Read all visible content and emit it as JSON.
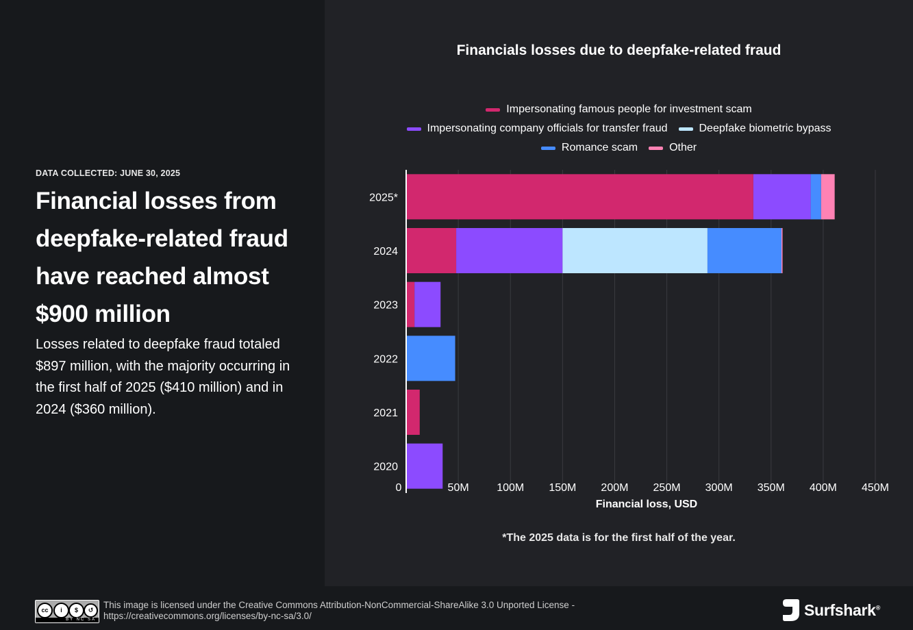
{
  "left": {
    "data_collected": "DATA COLLECTED: JUNE 30, 2025",
    "headline": "Financial losses from deepfake-related fraud have reached almost $900 million",
    "description": "Losses related to deepfake fraud totaled $897 million, with the majority occurring in the first half of 2025 ($410 million) and in 2024 ($360 million)."
  },
  "chart_data": {
    "type": "bar",
    "orientation": "horizontal",
    "stacked": true,
    "title": "Financials losses due to deepfake-related fraud",
    "xlabel": "Financial loss, USD",
    "ylabel": "",
    "xlim": [
      0,
      450000000
    ],
    "x_ticks": [
      0,
      50000000,
      100000000,
      150000000,
      200000000,
      250000000,
      300000000,
      350000000,
      400000000,
      450000000
    ],
    "x_tick_labels": [
      "0",
      "50M",
      "100M",
      "150M",
      "200M",
      "250M",
      "300M",
      "350M",
      "400M",
      "450M"
    ],
    "categories": [
      "2025*",
      "2024",
      "2023",
      "2022",
      "2021",
      "2020"
    ],
    "grid": "vertical",
    "legend_position": "top",
    "series": [
      {
        "name": "Impersonating famous people for investment scam",
        "color": "#d2286e",
        "values": [
          333000000,
          48000000,
          8000000,
          0,
          13000000,
          0
        ]
      },
      {
        "name": "Impersonating company officials for transfer fraud",
        "color": "#8c4bff",
        "values": [
          55000000,
          102000000,
          25000000,
          0,
          0,
          35000000
        ]
      },
      {
        "name": "Deepfake biometric bypass",
        "color": "#bde6ff",
        "values": [
          0,
          139000000,
          0,
          0,
          0,
          0
        ]
      },
      {
        "name": "Romance scam",
        "color": "#468cff",
        "values": [
          10000000,
          71000000,
          0,
          47000000,
          0,
          0
        ]
      },
      {
        "name": "Other",
        "color": "#ff82b4",
        "values": [
          13000000,
          1000000,
          0,
          0,
          0,
          0
        ]
      }
    ],
    "footnote": "*The 2025 data is for the first half of the year."
  },
  "footer": {
    "license_line1": "This image is licensed under the Creative Commons Attribution-NonCommercial-ShareAlike 3.0 Unported License -",
    "license_line2": "https://creativecommons.org/licenses/by-nc-sa/3.0/",
    "cc_badge_text": "BY NC SA",
    "brand": "Surfshark",
    "brand_mark": "®"
  },
  "icons": [
    "creative-commons-icon",
    "surfshark-logo-icon"
  ]
}
